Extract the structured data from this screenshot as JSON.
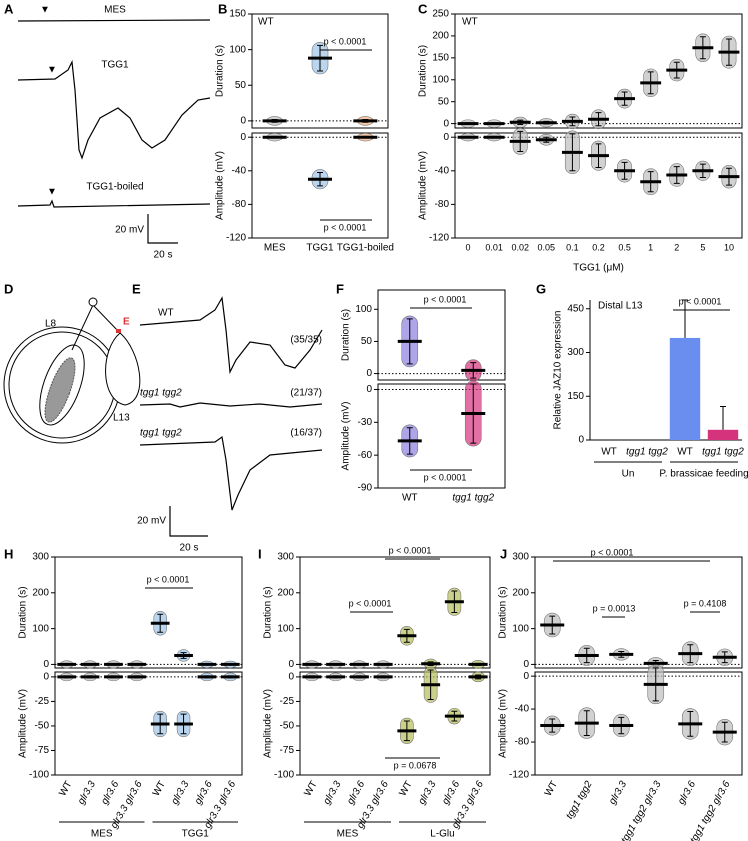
{
  "panel_labels": [
    "A",
    "B",
    "C",
    "D",
    "E",
    "F",
    "G",
    "H",
    "I",
    "J"
  ],
  "traces": {
    "a_labels": [
      "MES",
      "TGG1",
      "TGG1-boiled"
    ],
    "a_scale": [
      "20 mV",
      "20 s"
    ],
    "e_labels": [
      "WT",
      "tgg1 tgg2",
      "tgg1 tgg2"
    ],
    "e_counts": [
      "(35/35)",
      "(21/37)",
      "(16/37)"
    ],
    "e_scale": [
      "20 mV",
      "20 s"
    ]
  },
  "diagram": {
    "labels": [
      "L8",
      "L13",
      "E"
    ]
  },
  "chart_data": [
    {
      "type": "scatter",
      "tag": "WT",
      "categories": [
        "MES",
        "TGG1",
        "TGG1-boiled"
      ],
      "color": [
        "#bdbdbd",
        "#9cc3e6",
        "#f4b183"
      ],
      "top": {
        "ylabel": "Duration (s)",
        "ylim": [
          -10,
          150
        ],
        "yticks": [
          0,
          50,
          100,
          150
        ],
        "mean": [
          0,
          88,
          0
        ],
        "sd": [
          2,
          18,
          2
        ]
      },
      "bottom": {
        "ylabel": "Amplitude (mV)",
        "ylim": [
          -120,
          5
        ],
        "yticks": [
          0,
          -40,
          -80,
          -120
        ],
        "mean": [
          0,
          -50,
          0
        ],
        "sd": [
          1,
          8,
          1
        ]
      },
      "annotations": [
        "p < 0.0001",
        "p < 0.0001"
      ]
    },
    {
      "type": "scatter",
      "tag": "WT",
      "xlabel": "TGG1 (μM)",
      "categories": [
        "0",
        "0.01",
        "0.02",
        "0.05",
        "0.1",
        "0.2",
        "0.5",
        "1",
        "2",
        "5",
        "10"
      ],
      "color": [
        "#bdbdbd",
        "#bdbdbd",
        "#bdbdbd",
        "#bdbdbd",
        "#bdbdbd",
        "#bdbdbd",
        "#bdbdbd",
        "#bdbdbd",
        "#bdbdbd",
        "#bdbdbd",
        "#bdbdbd"
      ],
      "top": {
        "ylabel": "Duration (s)",
        "ylim": [
          -10,
          250
        ],
        "yticks": [
          0,
          50,
          100,
          150,
          200,
          250
        ],
        "mean": [
          0,
          0,
          3,
          2,
          5,
          10,
          57,
          93,
          122,
          173,
          163
        ],
        "sd": [
          2,
          2,
          5,
          3,
          10,
          15,
          15,
          25,
          18,
          25,
          30
        ]
      },
      "bottom": {
        "ylabel": "Amplitude (mV)",
        "ylim": [
          -120,
          5
        ],
        "yticks": [
          0,
          -40,
          -80,
          -120
        ],
        "mean": [
          0,
          0,
          -5,
          -3,
          -18,
          -22,
          -40,
          -53,
          -45,
          -40,
          -47
        ],
        "sd": [
          1,
          1,
          12,
          3,
          22,
          14,
          10,
          12,
          10,
          8,
          10
        ]
      },
      "annotations": []
    },
    {
      "type": "scatter",
      "categories": [
        "WT",
        "tgg1 tgg2"
      ],
      "color": [
        "#8b7fe0",
        "#d6337d"
      ],
      "top": {
        "ylabel": "Duration (s)",
        "ylim": [
          -10,
          130
        ],
        "yticks": [
          0,
          50,
          100
        ],
        "mean": [
          50,
          5
        ],
        "sd": [
          35,
          12
        ]
      },
      "bottom": {
        "ylabel": "Amplitude (mV)",
        "ylim": [
          -90,
          5
        ],
        "yticks": [
          0,
          -30,
          -60,
          -90
        ],
        "mean": [
          -47,
          -22
        ],
        "sd": [
          12,
          27
        ]
      },
      "annotations": [
        "p < 0.0001",
        "p < 0.0001"
      ]
    },
    {
      "type": "bar",
      "tag": "Distal L13",
      "ylabel": "Relative JAZ10 expression",
      "categories": [
        "WT",
        "tgg1 tgg2",
        "WT",
        "tgg1 tgg2"
      ],
      "color": [
        "#6a5de6",
        "#d6337d",
        "#6a8ef0",
        "#d6337d"
      ],
      "ylim": [
        0,
        480
      ],
      "yticks": [
        0,
        150,
        300,
        450
      ],
      "values": [
        0,
        0,
        350,
        35
      ],
      "sd": [
        0,
        0,
        130,
        80
      ],
      "groups": [
        "Un",
        "P. brassicae feeding"
      ],
      "annotations": [
        "p < 0.0001"
      ]
    },
    {
      "type": "scatter",
      "categories": [
        "WT",
        "glr3.3",
        "glr3.6",
        "glr3.3 glr3.6",
        "WT",
        "glr3.3",
        "glr3.6",
        "glr3.3 glr3.6"
      ],
      "color": [
        "#bdbdbd",
        "#bdbdbd",
        "#bdbdbd",
        "#bdbdbd",
        "#9cc3e6",
        "#9cc3e6",
        "#9cc3e6",
        "#9cc3e6"
      ],
      "top": {
        "ylabel": "Duration (s)",
        "ylim": [
          -10,
          300
        ],
        "yticks": [
          0,
          100,
          200,
          300
        ],
        "mean": [
          0,
          0,
          0,
          0,
          115,
          25,
          0,
          0
        ],
        "sd": [
          2,
          2,
          2,
          2,
          25,
          8,
          1,
          1
        ]
      },
      "bottom": {
        "ylabel": "Amplitude (mV)",
        "ylim": [
          -100,
          5
        ],
        "yticks": [
          0,
          -25,
          -50,
          -75,
          -100
        ],
        "mean": [
          0,
          0,
          0,
          0,
          -48,
          -48,
          0,
          0
        ],
        "sd": [
          1,
          1,
          1,
          1,
          10,
          10,
          1,
          1
        ]
      },
      "groups": [
        "MES",
        "TGG1"
      ],
      "annotations": [
        "p < 0.0001"
      ]
    },
    {
      "type": "scatter",
      "categories": [
        "WT",
        "glr3.3",
        "glr3.6",
        "glr3.3 glr3.6",
        "WT",
        "glr3.3",
        "glr3.6",
        "glr3.3 glr3.6"
      ],
      "color": [
        "#bdbdbd",
        "#bdbdbd",
        "#bdbdbd",
        "#bdbdbd",
        "#b5bd5a",
        "#b5bd5a",
        "#b5bd5a",
        "#b5bd5a"
      ],
      "top": {
        "ylabel": "Duration (s)",
        "ylim": [
          -10,
          300
        ],
        "yticks": [
          0,
          100,
          200,
          300
        ],
        "mean": [
          0,
          0,
          0,
          0,
          80,
          2,
          175,
          0
        ],
        "sd": [
          2,
          2,
          2,
          2,
          18,
          5,
          30,
          3
        ]
      },
      "bottom": {
        "ylabel": "Amplitude (mV)",
        "ylim": [
          -100,
          5
        ],
        "yticks": [
          0,
          -25,
          -50,
          -75,
          -100
        ],
        "mean": [
          0,
          0,
          0,
          0,
          -55,
          -8,
          -40,
          0
        ],
        "sd": [
          1,
          1,
          1,
          1,
          10,
          15,
          5,
          2
        ]
      },
      "groups": [
        "MES",
        "L-Glu"
      ],
      "annotations": [
        "p < 0.0001",
        "p < 0.0001",
        "p = 0.0678"
      ]
    },
    {
      "type": "scatter",
      "categories": [
        "WT",
        "tgg1 tgg2",
        "glr3.3",
        "tgg1 tgg2 glr3.3",
        "glr3.6",
        "tgg1 tgg2 glr3.6"
      ],
      "color": [
        "#bdbdbd",
        "#bdbdbd",
        "#bdbdbd",
        "#bdbdbd",
        "#bdbdbd",
        "#bdbdbd"
      ],
      "top": {
        "ylabel": "Duration (s)",
        "ylim": [
          -10,
          300
        ],
        "yticks": [
          0,
          100,
          200,
          300
        ],
        "mean": [
          110,
          25,
          28,
          3,
          30,
          20
        ],
        "sd": [
          25,
          20,
          8,
          8,
          25,
          15
        ]
      },
      "bottom": {
        "ylabel": "Amplitude (mV)",
        "ylim": [
          -120,
          5
        ],
        "yticks": [
          0,
          -40,
          -80,
          -120
        ],
        "mean": [
          -60,
          -57,
          -60,
          -10,
          -58,
          -68
        ],
        "sd": [
          8,
          15,
          10,
          20,
          15,
          12
        ]
      },
      "annotations": [
        "p < 0.0001",
        "p = 0.0013",
        "p = 0.4108"
      ]
    }
  ]
}
